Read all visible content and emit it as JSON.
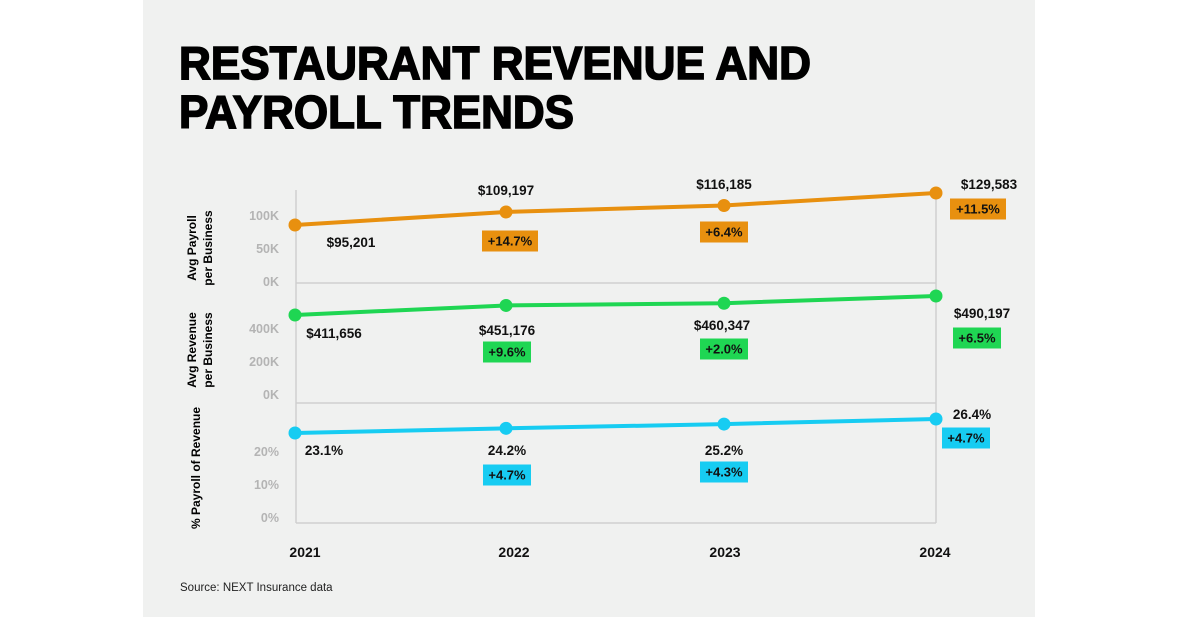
{
  "chart_data": {
    "type": "line",
    "title": "RESTAURANT REVENUE AND PAYROLL TRENDS",
    "title_lines": [
      "RESTAURANT REVENUE AND",
      "PAYROLL TRENDS"
    ],
    "categories": [
      "2021",
      "2022",
      "2023",
      "2024"
    ],
    "source": "Source: NEXT Insurance data",
    "grid": false,
    "panels": [
      {
        "ylabel_lines": [
          "Avg Payroll",
          "per Business"
        ],
        "ticks": [
          "100K",
          "50K",
          "0K"
        ],
        "color": "#e8900f",
        "values": [
          95201,
          109197,
          116185,
          129583
        ],
        "value_labels": [
          "$95,201",
          "$109,197",
          "$116,185",
          "$129,583"
        ],
        "changes": [
          null,
          "+14.7%",
          "+6.4%",
          "+11.5%"
        ]
      },
      {
        "ylabel_lines": [
          "Avg Revenue",
          "per Business"
        ],
        "ticks": [
          "400K",
          "200K",
          "0K"
        ],
        "color": "#1fd653",
        "values": [
          411656,
          451176,
          460347,
          490197
        ],
        "value_labels": [
          "$411,656",
          "$451,176",
          "$460,347",
          "$490,197"
        ],
        "changes": [
          null,
          "+9.6%",
          "+2.0%",
          "+6.5%"
        ]
      },
      {
        "ylabel_lines": [
          "% Payroll of Revenue"
        ],
        "ticks": [
          "20%",
          "10%",
          "0%"
        ],
        "color": "#17ccf2",
        "values": [
          23.1,
          24.2,
          25.2,
          26.4
        ],
        "value_labels": [
          "23.1%",
          "24.2%",
          "25.2%",
          "26.4%"
        ],
        "changes": [
          null,
          "+4.7%",
          "+4.3%",
          "+4.7%"
        ]
      }
    ]
  }
}
